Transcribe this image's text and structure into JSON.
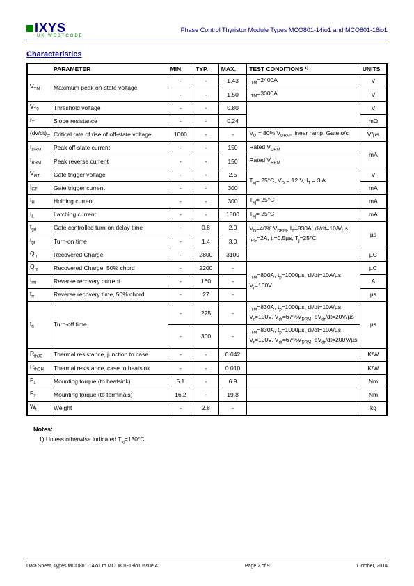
{
  "header": {
    "logo_text": "IXYS",
    "logo_sub": "UK WESTCODE",
    "title": "Phase Control Thyristor Module Types MCO801-14io1 and MCO801-18io1"
  },
  "section_title": "Characteristics",
  "columns": {
    "param": "PARAMETER",
    "min": "MIN.",
    "typ": "TYP.",
    "max": "MAX.",
    "cond": "TEST CONDITIONS ¹⁾",
    "units": "UNITS"
  },
  "rows": [
    {
      "sym": "V<sub>TM</sub>",
      "param": "Maximum peak on-state voltage",
      "min": "-",
      "typ": "-",
      "max": "1.43",
      "cond": "I<sub>TM</sub>=2400A",
      "units": "V",
      "rowspan_sym": 2,
      "rowspan_param": 2
    },
    {
      "min": "-",
      "typ": "-",
      "max": "1.50",
      "cond": "I<sub>TM</sub>=3000A",
      "units": "V"
    },
    {
      "sym": "V<sub>T0</sub>",
      "param": "Threshold voltage",
      "min": "-",
      "typ": "-",
      "max": "0.80",
      "cond": "",
      "units": "V",
      "rowspan_cond": 2
    },
    {
      "sym": "r<sub>T</sub>",
      "param": "Slope resistance",
      "min": "-",
      "typ": "-",
      "max": "0.24",
      "units": "mΩ"
    },
    {
      "sym": "(dv/dt)<sub>cr</sub>",
      "param": "Critical rate of rise of off-state voltage",
      "min": "1000",
      "typ": "-",
      "max": "-",
      "cond": "V<sub>D</sub> = 80% V<sub>DRM</sub>, linear ramp, Gate o/c",
      "units": "V/µs"
    },
    {
      "sym": "I<sub>DRM</sub>",
      "param": "Peak off-state current",
      "min": "-",
      "typ": "-",
      "max": "150",
      "cond": "Rated V<sub>DRM</sub>",
      "units": "mA",
      "rowspan_units": 2
    },
    {
      "sym": "I<sub>RRM</sub>",
      "param": "Peak reverse current",
      "min": "-",
      "typ": "-",
      "max": "150",
      "cond": "Rated V<sub>RRM</sub>"
    },
    {
      "sym": "V<sub>GT</sub>",
      "param": "Gate trigger voltage",
      "min": "-",
      "typ": "-",
      "max": "2.5",
      "cond": "T<sub>vj</sub>= 25°C, V<sub>D</sub> = 12 V, I<sub>T</sub> = 3 A",
      "units": "V",
      "rowspan_cond": 2
    },
    {
      "sym": "I<sub>GT</sub>",
      "param": "Gate trigger current",
      "min": "-",
      "typ": "-",
      "max": "300",
      "units": "mA"
    },
    {
      "sym": "I<sub>H</sub>",
      "param": "Holding current",
      "min": "-",
      "typ": "-",
      "max": "300",
      "cond": "T<sub>vj</sub>= 25°C",
      "units": "mA"
    },
    {
      "sym": "I<sub>L</sub>",
      "param": "Latching current",
      "min": "-",
      "typ": "-",
      "max": "1500",
      "cond": "T<sub>vj</sub>= 25°C",
      "units": "mA"
    },
    {
      "sym": "t<sub>gd</sub>",
      "param": "Gate controlled turn-on delay time",
      "min": "-",
      "typ": "0.8",
      "max": "2.0",
      "cond": "V<sub>D</sub>=40% V<sub>DRM</sub>, I<sub>T</sub>=830A, di/dt=10A/µs, I<sub>FG</sub>=2A, t<sub>r</sub>=0.5µs, T<sub>j</sub>=25°C",
      "units": "µs",
      "rowspan_cond": 2,
      "rowspan_units": 2
    },
    {
      "sym": "t<sub>gt</sub>",
      "param": "Turn-on time",
      "min": "-",
      "typ": "1.4",
      "max": "3.0"
    },
    {
      "sym": "Q<sub>rr</sub>",
      "param": "Recovered Charge",
      "min": "-",
      "typ": "2800",
      "max": "3100",
      "cond": "",
      "units": "µC"
    },
    {
      "sym": "Q<sub>ra</sub>",
      "param": "Recovered Charge, 50% chord",
      "min": "-",
      "typ": "2200",
      "max": "-",
      "cond": "I<sub>TM</sub>=800A, t<sub>p</sub>=1000µs, di/dt=10A/µs, V<sub>r</sub>=100V",
      "units": "µC",
      "rowspan_cond": 3
    },
    {
      "sym": "I<sub>rm</sub>",
      "param": "Reverse recovery current",
      "min": "-",
      "typ": "160",
      "max": "-",
      "units": "A"
    },
    {
      "sym": "t<sub>rr</sub>",
      "param": "Reverse recovery time, 50% chord",
      "min": "-",
      "typ": "27",
      "max": "-",
      "units": "µs"
    },
    {
      "sym": "t<sub>q</sub>",
      "param": "Turn-off time",
      "min": "-",
      "typ": "225",
      "max": "-",
      "cond": "I<sub>TM</sub>=830A, t<sub>p</sub>=1000µs, di/dt=10A/µs, V<sub>r</sub>=100V, V<sub>dr</sub>=67%V<sub>DRM</sub>, dV<sub>dr</sub>/dt=20V/µs",
      "units": "µs",
      "rowspan_sym": 2,
      "rowspan_param": 2,
      "rowspan_units": 2
    },
    {
      "min": "-",
      "typ": "300",
      "max": "-",
      "cond": "I<sub>TM</sub>=830A, t<sub>p</sub>=1000µs, di/dt=10A/µs, V<sub>r</sub>=100V, V<sub>dr</sub>=67%V<sub>DRM</sub>, dV<sub>dr</sub>/dt=200V/µs"
    },
    {
      "sym": "R<sub>thJC</sub>",
      "param": "Thermal resistance, junction to case",
      "min": "-",
      "typ": "-",
      "max": "0.042",
      "cond": "",
      "units": "K/W"
    },
    {
      "sym": "R<sub>thCH</sub>",
      "param": "Thermal resistance, case to heatsink",
      "min": "-",
      "typ": "-",
      "max": "0.010",
      "cond": "",
      "units": "K/W"
    },
    {
      "sym": "F<sub>1</sub>",
      "param": "Mounting torque (to heatsink)",
      "min": "5.1",
      "typ": "-",
      "max": "6.9",
      "cond": "",
      "units": "Nm"
    },
    {
      "sym": "F<sub>2</sub>",
      "param": "Mounting torque (to terminals)",
      "min": "16.2",
      "typ": "-",
      "max": "19.8",
      "cond": "",
      "units": "Nm"
    },
    {
      "sym": "W<sub>t</sub>",
      "param": "Weight",
      "min": "-",
      "typ": "2.8",
      "max": "-",
      "cond": "",
      "units": "kg"
    }
  ],
  "notes": {
    "heading": "Notes:",
    "text": "1)   Unless otherwise indicated T<sub>vj</sub>=130°C."
  },
  "footer": {
    "left": "Data Sheet, Types MCO801-14io1 to MCO801-18io1 Issue 4",
    "center": "Page 2 of 9",
    "right": "October, 2014"
  }
}
